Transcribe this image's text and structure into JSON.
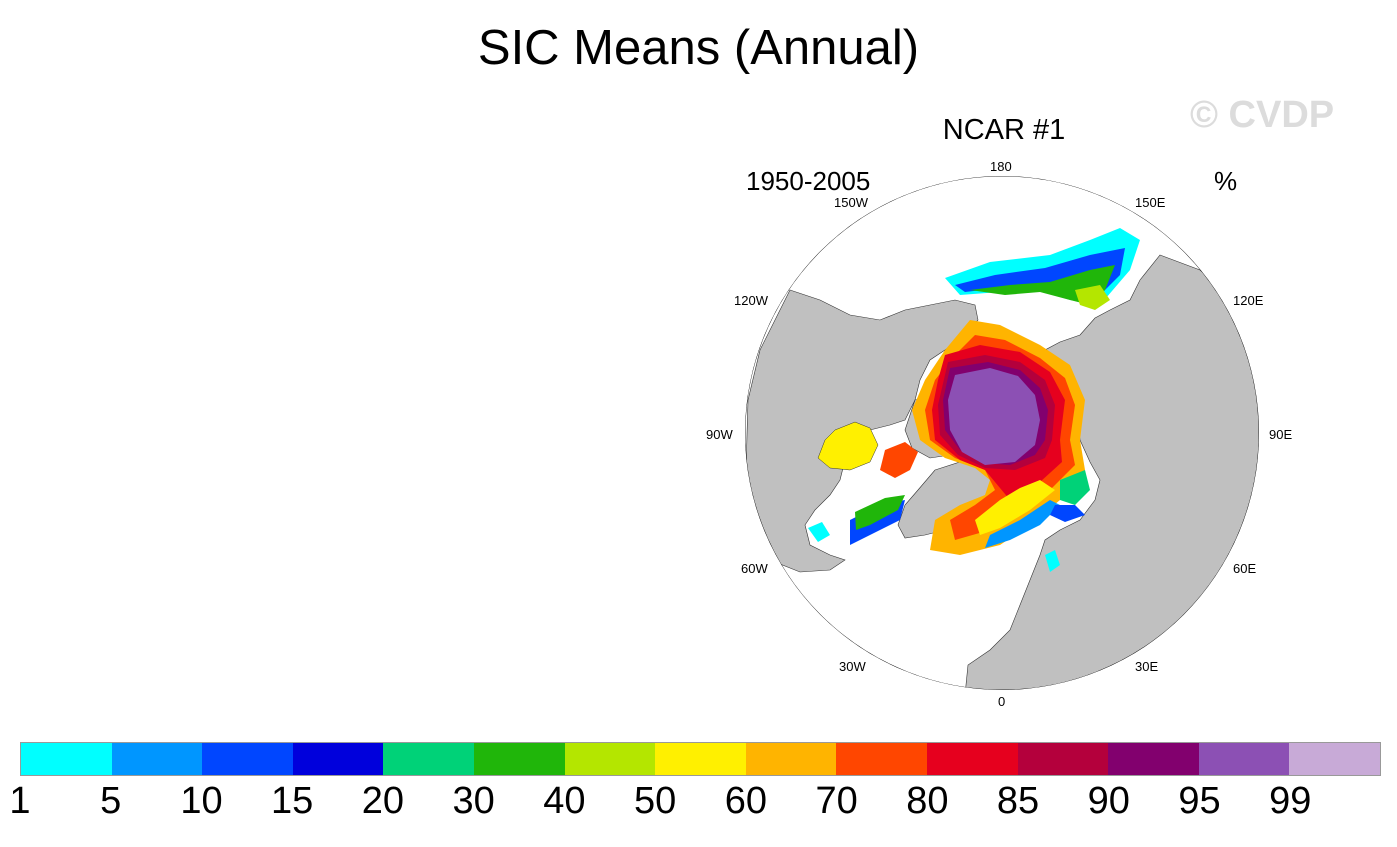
{
  "figure": {
    "title": "SIC Means (Annual)",
    "watermark": "© CVDP",
    "panel": {
      "title": "NCAR #1",
      "period": "1950-2005",
      "units": "%"
    },
    "longitude_labels": {
      "deg_180": "180",
      "deg_150E": "150E",
      "deg_120E": "120E",
      "deg_90E": "90E",
      "deg_60E": "60E",
      "deg_30E": "30E",
      "deg_0": "0",
      "deg_30W": "30W",
      "deg_60W": "60W",
      "deg_90W": "90W",
      "deg_120W": "120W",
      "deg_150W": "150W"
    }
  },
  "colorbar": {
    "colors": [
      "#00ffff",
      "#0096ff",
      "#0046ff",
      "#0000dc",
      "#00d278",
      "#20b60a",
      "#b4e600",
      "#fff000",
      "#ffb400",
      "#ff4600",
      "#e6001e",
      "#b4003c",
      "#82006e",
      "#8c50b4",
      "#c8aad7"
    ],
    "labels": [
      "1",
      "5",
      "10",
      "15",
      "20",
      "30",
      "40",
      "50",
      "60",
      "70",
      "80",
      "85",
      "90",
      "95",
      "99"
    ]
  },
  "map_colors": {
    "land": "#c0c0c0",
    "ocean": "#ffffff",
    "ice_core": "#8c50b4"
  }
}
